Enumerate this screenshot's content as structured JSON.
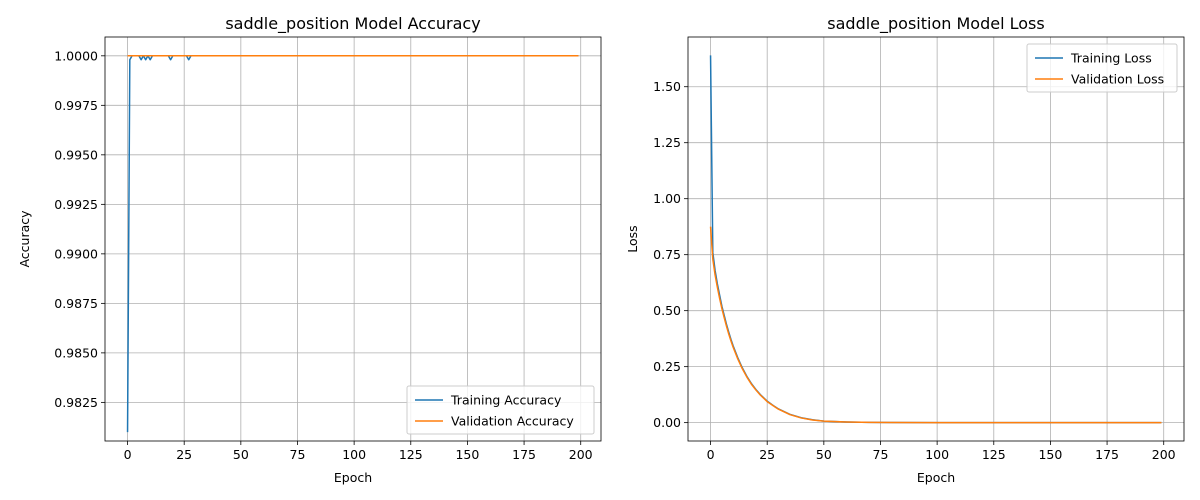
{
  "chart_data": [
    {
      "type": "line",
      "title": "saddle_position Model Accuracy",
      "xlabel": "Epoch",
      "ylabel": "Accuracy",
      "xlim": [
        -9.95,
        208.95
      ],
      "ylim": [
        0.98055,
        1.00095
      ],
      "xticks": [
        0,
        25,
        50,
        75,
        100,
        125,
        150,
        175,
        200
      ],
      "yticks": [
        0.9825,
        0.985,
        0.9875,
        0.99,
        0.9925,
        0.995,
        0.9975,
        1.0
      ],
      "ytick_labels": [
        "0.9825",
        "0.9850",
        "0.9875",
        "0.9900",
        "0.9925",
        "0.9950",
        "0.9975",
        "1.0000"
      ],
      "grid": true,
      "legend_position": "lower-right",
      "series": [
        {
          "name": "Training Accuracy",
          "color": "#1f77b4",
          "points": [
            [
              0,
              0.981
            ],
            [
              1,
              0.9998
            ],
            [
              2,
              1.0
            ],
            [
              3,
              1.0
            ],
            [
              4,
              1.0
            ],
            [
              5,
              1.0
            ],
            [
              6,
              0.9998
            ],
            [
              7,
              1.0
            ],
            [
              8,
              0.9998
            ],
            [
              9,
              1.0
            ],
            [
              10,
              0.9998
            ],
            [
              11,
              1.0
            ],
            [
              12,
              1.0
            ],
            [
              13,
              1.0
            ],
            [
              14,
              1.0
            ],
            [
              15,
              1.0
            ],
            [
              16,
              1.0
            ],
            [
              17,
              1.0
            ],
            [
              18,
              1.0
            ],
            [
              19,
              0.9998
            ],
            [
              20,
              1.0
            ],
            [
              21,
              1.0
            ],
            [
              22,
              1.0
            ],
            [
              23,
              1.0
            ],
            [
              24,
              1.0
            ],
            [
              25,
              1.0
            ],
            [
              26,
              1.0
            ],
            [
              27,
              0.9998
            ],
            [
              28,
              1.0
            ],
            [
              199,
              1.0
            ]
          ]
        },
        {
          "name": "Validation Accuracy",
          "color": "#ff7f0e",
          "points": [
            [
              0,
              1.0
            ],
            [
              199,
              1.0
            ]
          ]
        }
      ]
    },
    {
      "type": "line",
      "title": "saddle_position Model Loss",
      "xlabel": "Epoch",
      "ylabel": "Loss",
      "xlim": [
        -9.95,
        208.95
      ],
      "ylim": [
        -0.082,
        1.722
      ],
      "xticks": [
        0,
        25,
        50,
        75,
        100,
        125,
        150,
        175,
        200
      ],
      "yticks": [
        0.0,
        0.25,
        0.5,
        0.75,
        1.0,
        1.25,
        1.5
      ],
      "ytick_labels": [
        "0.00",
        "0.25",
        "0.50",
        "0.75",
        "1.00",
        "1.25",
        "1.50"
      ],
      "grid": true,
      "legend_position": "upper-right",
      "series": [
        {
          "name": "Training Loss",
          "color": "#1f77b4",
          "points": [
            [
              0,
              1.64
            ],
            [
              1,
              0.76
            ],
            [
              2,
              0.68
            ],
            [
              3,
              0.62
            ],
            [
              4,
              0.57
            ],
            [
              5,
              0.52
            ],
            [
              6,
              0.48
            ],
            [
              7,
              0.44
            ],
            [
              8,
              0.405
            ],
            [
              9,
              0.372
            ],
            [
              10,
              0.342
            ],
            [
              12,
              0.29
            ],
            [
              14,
              0.245
            ],
            [
              16,
              0.207
            ],
            [
              18,
              0.175
            ],
            [
              20,
              0.148
            ],
            [
              22,
              0.125
            ],
            [
              25,
              0.096
            ],
            [
              28,
              0.074
            ],
            [
              30,
              0.061
            ],
            [
              35,
              0.037
            ],
            [
              40,
              0.022
            ],
            [
              45,
              0.013
            ],
            [
              50,
              0.007
            ],
            [
              60,
              0.003
            ],
            [
              70,
              0.0012
            ],
            [
              80,
              0.0005
            ],
            [
              100,
              0.0001
            ],
            [
              125,
              0.0
            ],
            [
              150,
              0.0
            ],
            [
              175,
              0.0
            ],
            [
              199,
              0.0
            ]
          ]
        },
        {
          "name": "Validation Loss",
          "color": "#ff7f0e",
          "points": [
            [
              0,
              0.875
            ],
            [
              1,
              0.73
            ],
            [
              2,
              0.66
            ],
            [
              3,
              0.605
            ],
            [
              4,
              0.555
            ],
            [
              5,
              0.51
            ],
            [
              6,
              0.47
            ],
            [
              7,
              0.432
            ],
            [
              8,
              0.397
            ],
            [
              9,
              0.365
            ],
            [
              10,
              0.336
            ],
            [
              12,
              0.285
            ],
            [
              14,
              0.241
            ],
            [
              16,
              0.204
            ],
            [
              18,
              0.172
            ],
            [
              20,
              0.146
            ],
            [
              22,
              0.123
            ],
            [
              25,
              0.094
            ],
            [
              28,
              0.073
            ],
            [
              30,
              0.06
            ],
            [
              35,
              0.036
            ],
            [
              40,
              0.021
            ],
            [
              45,
              0.012
            ],
            [
              50,
              0.007
            ],
            [
              60,
              0.003
            ],
            [
              70,
              0.0012
            ],
            [
              80,
              0.0005
            ],
            [
              100,
              0.0001
            ],
            [
              125,
              0.0
            ],
            [
              150,
              0.0
            ],
            [
              175,
              0.0
            ],
            [
              199,
              0.0
            ]
          ]
        }
      ]
    }
  ]
}
